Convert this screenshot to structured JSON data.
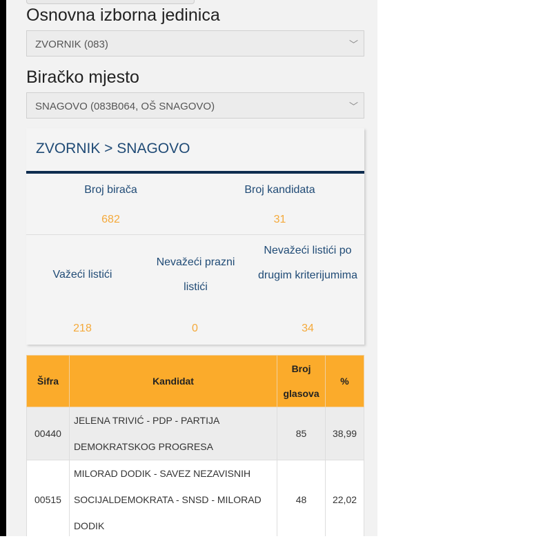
{
  "filters": {
    "unit_label": "Osnovna izborna jedinica",
    "unit_value": "ZVORNIK (083)",
    "place_label": "Biračko mjesto",
    "place_value": "SNAGOVO (083B064, OŠ SNAGOVO)",
    "chevron_icon": "chevron-down-icon"
  },
  "card": {
    "title": "ZVORNIK > SNAGOVO",
    "stats": [
      {
        "label": "Broj birača",
        "value": "682"
      },
      {
        "label": "Broj kandidata",
        "value": "31"
      },
      {
        "label": "Važeći listići",
        "value": "218"
      },
      {
        "label": "Nevažeći prazni listići",
        "value": "0"
      },
      {
        "label": "Nevažeći listići po drugim kriterijumima",
        "value": "34"
      }
    ]
  },
  "table": {
    "headers": [
      "Šifra",
      "Kandidat",
      "Broj glasova",
      "%"
    ],
    "rows": [
      {
        "code": "00440",
        "candidate": "JELENA TRIVIĆ - PDP - PARTIJA DEMOKRATSKOG PROGRESA",
        "votes": "85",
        "percent": "38,99"
      },
      {
        "code": "00515",
        "candidate": "MILORAD DODIK - SAVEZ NEZAVISNIH SOCIJALDEMOKRATA - SNSD - MILORAD DODIK",
        "votes": "48",
        "percent": "22,02"
      }
    ]
  },
  "colors": {
    "accent": "#fbab2b",
    "title_blue": "#1f4a75",
    "value_orange": "#f4a93a"
  }
}
